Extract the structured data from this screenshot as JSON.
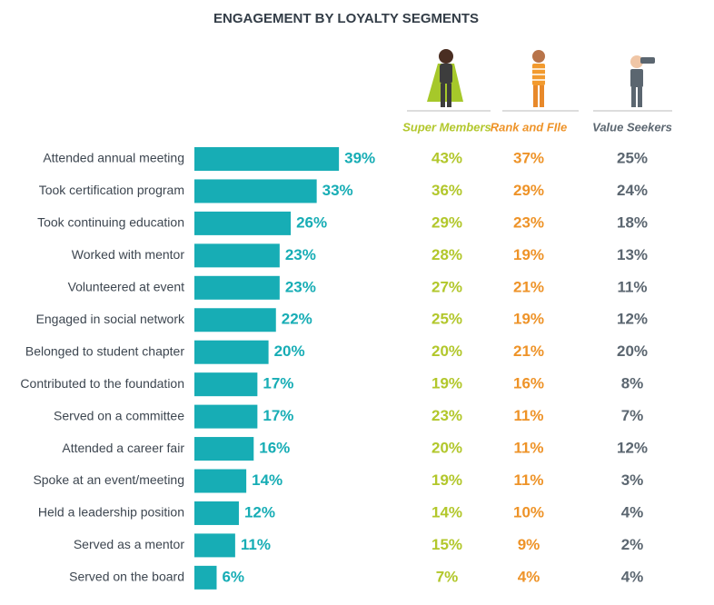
{
  "chart_data": {
    "type": "bar",
    "title": "ENGAGEMENT BY LOYALTY SEGMENTS",
    "categories": [
      "Attended annual meeting",
      "Took certification program",
      "Took continuing education",
      "Worked with mentor",
      "Volunteered at event",
      "Engaged in social network",
      "Belonged to student chapter",
      "Contributed to the foundation",
      "Served on a committee",
      "Attended a career fair",
      "Spoke at an event/meeting",
      "Held a leadership position",
      "Served as a mentor",
      "Served on the board"
    ],
    "series": [
      {
        "color": "#17adb5",
        "values": [
          39,
          33,
          26,
          23,
          23,
          22,
          20,
          17,
          17,
          16,
          14,
          12,
          11,
          6
        ],
        "value_labels": [
          "39%",
          "33%",
          "26%",
          "23%",
          "23%",
          "22%",
          "20%",
          "17%",
          "17%",
          "16%",
          "14%",
          "12%",
          "11%",
          "6%"
        ]
      }
    ],
    "columns": [
      {
        "name": "Super Members",
        "color": "#b2c72b",
        "values": [
          43,
          36,
          29,
          28,
          27,
          25,
          20,
          19,
          23,
          20,
          19,
          14,
          15,
          7
        ],
        "value_labels": [
          "43%",
          "36%",
          "29%",
          "28%",
          "27%",
          "25%",
          "20%",
          "19%",
          "23%",
          "20%",
          "19%",
          "14%",
          "15%",
          "7%"
        ]
      },
      {
        "name": "Rank and FIle",
        "color": "#ee9328",
        "values": [
          37,
          29,
          23,
          19,
          21,
          19,
          21,
          16,
          11,
          11,
          11,
          10,
          9,
          4
        ],
        "value_labels": [
          "37%",
          "29%",
          "23%",
          "19%",
          "21%",
          "19%",
          "21%",
          "16%",
          "11%",
          "11%",
          "11%",
          "10%",
          "9%",
          "4%"
        ]
      },
      {
        "name": "Value Seekers",
        "color": "#5b6670",
        "values": [
          25,
          24,
          18,
          13,
          11,
          12,
          20,
          8,
          7,
          12,
          3,
          4,
          2,
          4
        ],
        "value_labels": [
          "25%",
          "24%",
          "18%",
          "13%",
          "11%",
          "12%",
          "20%",
          "8%",
          "7%",
          "12%",
          "3%",
          "4%",
          "2%",
          "4%"
        ]
      }
    ]
  }
}
